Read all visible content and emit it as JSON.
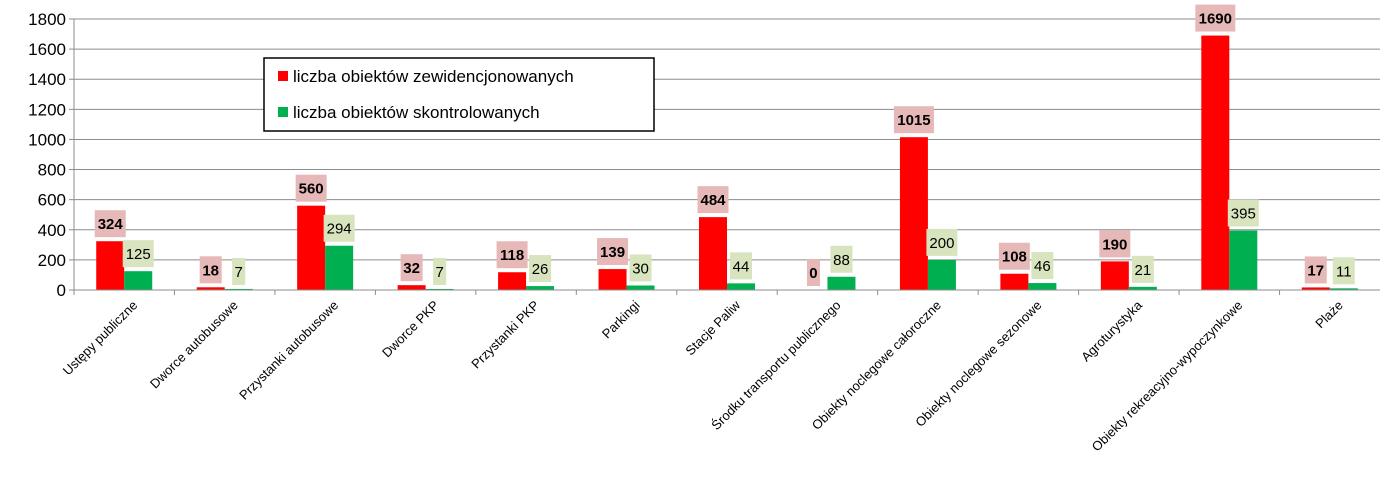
{
  "chart_data": {
    "type": "bar",
    "categories": [
      "Ustępy publiczne",
      "Dworce autobusowe",
      "Przystanki autobusowe",
      "Dworce PKP",
      "Przystanki PKP",
      "Parkingi",
      "Stacje Paliw",
      "Środku transportu publicznego",
      "Obiekty noclegowe całoroczne",
      "Obiekty noclegowe sezonowe",
      "Agroturystyka",
      "Obiekty rekreacyjno-wypoczynkowe",
      "Plaże"
    ],
    "series": [
      {
        "name": "liczba obiektów zewidencjonowanych",
        "color": "#ff0000",
        "label_bg": "#e6b9b8",
        "values": [
          324,
          18,
          560,
          32,
          118,
          139,
          484,
          0,
          1015,
          108,
          190,
          1690,
          17
        ]
      },
      {
        "name": "liczba obiektów skontrolowanych",
        "color": "#00b050",
        "label_bg": "#d7e4bd",
        "values": [
          125,
          7,
          294,
          7,
          26,
          30,
          44,
          88,
          200,
          46,
          21,
          395,
          11
        ]
      }
    ],
    "ylim": [
      0,
      1800
    ],
    "yticks": [
      0,
      200,
      400,
      600,
      800,
      1000,
      1200,
      1400,
      1600,
      1800
    ],
    "grid": true,
    "legend_position": "top-left"
  }
}
